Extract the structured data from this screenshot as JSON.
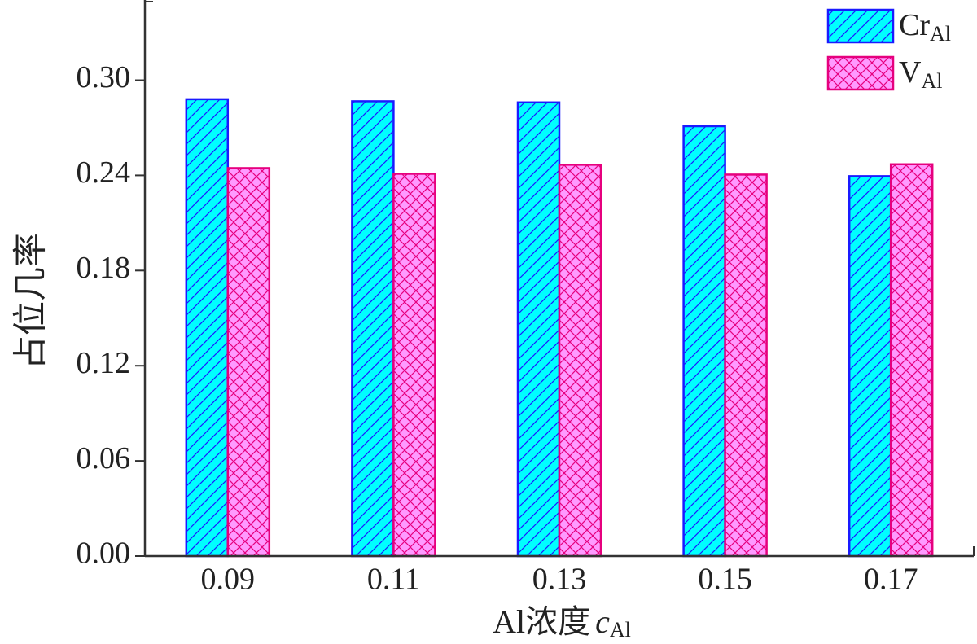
{
  "chart_data": {
    "type": "bar",
    "x_label": "Al浓度",
    "x_label_var": "c",
    "x_label_subscript": "Al",
    "y_label": "占位几率",
    "categories": [
      "0.09",
      "0.11",
      "0.13",
      "0.15",
      "0.17"
    ],
    "series": [
      {
        "name": "Cr",
        "name_subscript": "Al",
        "color": "#00ffff",
        "edgecolor": "#1a1aff",
        "hatch": "/",
        "values": [
          0.288,
          0.2867,
          0.286,
          0.271,
          0.2395
        ]
      },
      {
        "name": "V",
        "name_subscript": "Al",
        "color": "#ff99ff",
        "edgecolor": "#e6007e",
        "hatch": "x",
        "values": [
          0.2446,
          0.241,
          0.2467,
          0.2405,
          0.247
        ]
      }
    ],
    "ylim": [
      0,
      0.348
    ],
    "yticks": [
      {
        "value": 0,
        "label": "0.00"
      },
      0.06,
      0.12,
      0.18,
      0.24,
      {
        "value": 0.3,
        "label": "0.30"
      }
    ],
    "legend": "upper right"
  }
}
